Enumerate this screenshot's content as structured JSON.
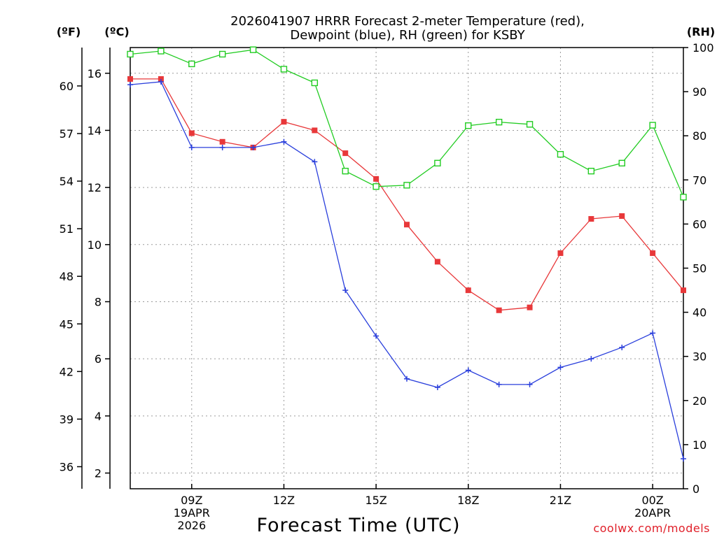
{
  "chart_data": {
    "type": "line",
    "title": [
      "2026041907 HRRR Forecast 2-meter Temperature (red),",
      "Dewpoint (blue), RH (green) for KSBY"
    ],
    "xlabel": "Forecast Time (UTC)",
    "credit": "coolwx.com/models",
    "axis_units": {
      "fahrenheit": "(ºF)",
      "celsius": "(ºC)",
      "rh": "(RH)"
    },
    "x_hours": [
      7,
      8,
      9,
      10,
      11,
      12,
      13,
      14,
      15,
      16,
      17,
      18,
      19,
      20,
      21,
      22,
      23,
      24,
      25
    ],
    "xlim": [
      7,
      25
    ],
    "x_ticks": [
      {
        "hour": 9,
        "lines": [
          "09Z",
          "19APR",
          "2026"
        ]
      },
      {
        "hour": 12,
        "lines": [
          "12Z"
        ]
      },
      {
        "hour": 15,
        "lines": [
          "15Z"
        ]
      },
      {
        "hour": 18,
        "lines": [
          "18Z"
        ]
      },
      {
        "hour": 21,
        "lines": [
          "21Z"
        ]
      },
      {
        "hour": 24,
        "lines": [
          "00Z",
          "20APR"
        ]
      }
    ],
    "celsius_axis": {
      "ylim": [
        1.45,
        16.9
      ],
      "ticks": [
        2,
        4,
        6,
        8,
        10,
        12,
        14,
        16
      ]
    },
    "fahrenheit_axis": {
      "ticks": [
        36,
        39,
        42,
        45,
        48,
        51,
        54,
        57,
        60
      ]
    },
    "rh_axis": {
      "ylim": [
        0,
        100
      ],
      "ticks": [
        0,
        10,
        20,
        30,
        40,
        50,
        60,
        70,
        80,
        90,
        100
      ]
    },
    "series": [
      {
        "name": "Temperature",
        "axis": "celsius",
        "color": "#e8383a",
        "marker": "filled-square",
        "values": [
          15.8,
          15.8,
          13.9,
          13.6,
          13.4,
          14.3,
          14.0,
          13.2,
          12.3,
          10.7,
          9.4,
          8.4,
          7.7,
          7.8,
          9.7,
          10.9,
          11.0,
          9.7,
          8.4
        ]
      },
      {
        "name": "Dewpoint",
        "axis": "celsius",
        "color": "#2a3fdc",
        "marker": "plus",
        "values": [
          15.6,
          15.7,
          13.4,
          13.4,
          13.4,
          13.6,
          12.9,
          8.4,
          6.8,
          5.3,
          5.0,
          5.6,
          5.1,
          5.1,
          5.7,
          6.0,
          6.4,
          6.9,
          2.5
        ]
      },
      {
        "name": "RH",
        "axis": "rh",
        "color": "#22cc22",
        "marker": "open-square",
        "values": [
          98.5,
          99.2,
          96.3,
          98.5,
          99.5,
          95.1,
          92.0,
          72.0,
          68.5,
          68.8,
          73.8,
          82.3,
          83.1,
          82.6,
          75.8,
          72.0,
          73.8,
          82.4,
          66.1
        ]
      }
    ]
  }
}
